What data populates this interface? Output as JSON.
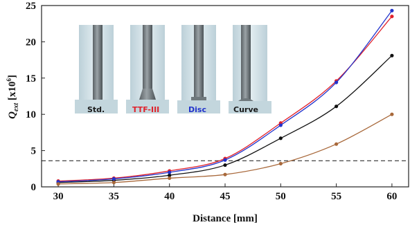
{
  "chart_data": {
    "type": "line",
    "x": [
      30,
      35,
      40,
      45,
      50,
      55,
      60
    ],
    "series": [
      {
        "name": "Std.",
        "color": "#111111",
        "values": [
          0.6,
          0.9,
          1.6,
          3.0,
          6.7,
          11.1,
          18.1
        ]
      },
      {
        "name": "TTF-III",
        "color": "#e0202a",
        "values": [
          0.8,
          1.2,
          2.2,
          3.9,
          8.8,
          14.6,
          23.5
        ]
      },
      {
        "name": "Disc",
        "color": "#2233cc",
        "values": [
          0.7,
          1.1,
          2.0,
          3.7,
          8.5,
          14.4,
          24.3
        ]
      },
      {
        "name": "Curve",
        "color": "#a8683a",
        "values": [
          0.4,
          0.6,
          1.2,
          1.7,
          3.2,
          5.9,
          10.0
        ]
      }
    ],
    "reference_line": {
      "y": 3.6,
      "style": "dashed"
    },
    "xlabel": "Distance [mm]",
    "ylabel_main": "Q",
    "ylabel_sub": "ext",
    "ylabel_unit": " [x10",
    "ylabel_exp": "6",
    "ylabel_close": "]",
    "xlim": [
      28.5,
      61.5
    ],
    "ylim": [
      0,
      25
    ],
    "xticks": [
      30,
      35,
      40,
      45,
      50,
      55,
      60
    ],
    "yticks": [
      0,
      5,
      10,
      15,
      20,
      25
    ],
    "grid": false,
    "inset_labels": [
      {
        "text": "Std.",
        "color": "#1a1a1a"
      },
      {
        "text": "TTF-III",
        "color": "#e0202a"
      },
      {
        "text": "Disc",
        "color": "#2233cc"
      },
      {
        "text": "Curve",
        "color": "#1a1a1a"
      }
    ]
  }
}
